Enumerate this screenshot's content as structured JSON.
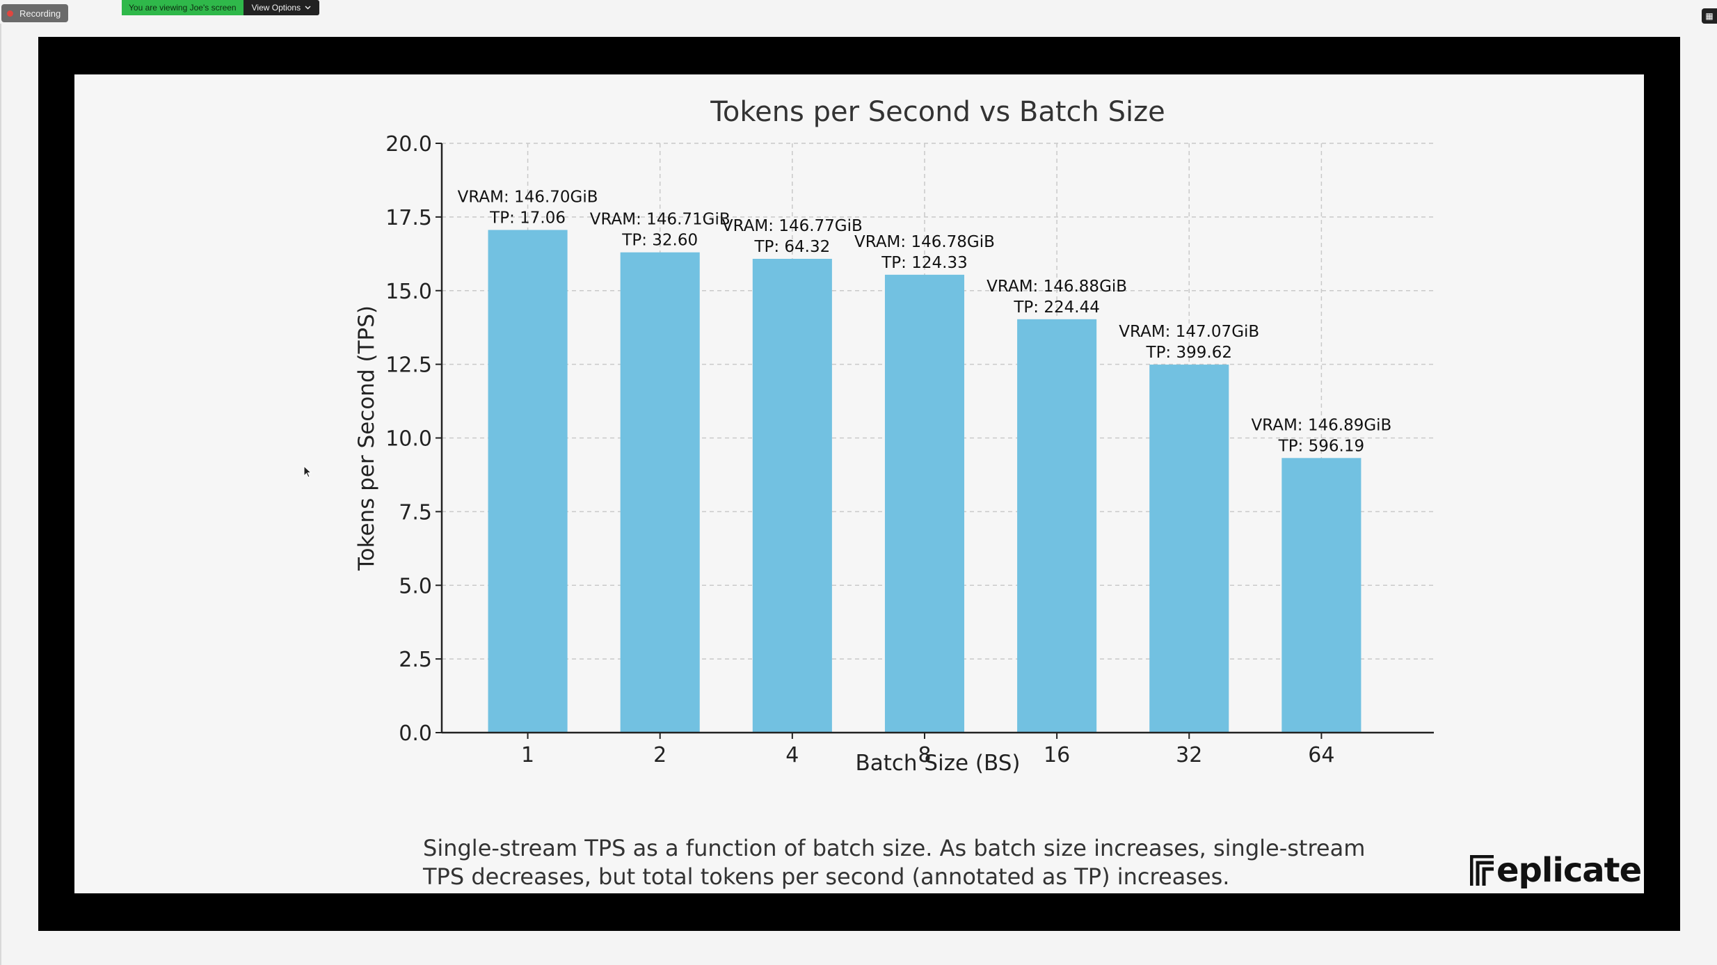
{
  "meeting": {
    "recording_label": "Recording",
    "banner_text": "You are viewing Joe's screen",
    "view_options_label": "View Options"
  },
  "slide": {
    "caption_line1": "Single-stream TPS as a function of batch size. As batch size increases, single-stream",
    "caption_line2": "TPS decreases, but total tokens per second (annotated as TP) increases.",
    "brand": "eplicate"
  },
  "colors": {
    "bar": "#72c1e1",
    "frame": "#000000",
    "banner": "#2fb84a"
  },
  "icons": {
    "recording": "red-dot-icon",
    "view_options": "chevron-down-icon",
    "brand": "replicate-logo-icon",
    "cursor": "mouse-pointer-icon"
  },
  "chart_data": {
    "type": "bar",
    "title": "Tokens per Second vs Batch Size",
    "xlabel": "Batch Size (BS)",
    "ylabel": "Tokens per Second (TPS)",
    "categories": [
      "1",
      "2",
      "4",
      "8",
      "16",
      "32",
      "64"
    ],
    "values": [
      17.06,
      16.3,
      16.08,
      15.54,
      14.03,
      12.49,
      9.32
    ],
    "annotations": [
      [
        "VRAM: 146.70GiB",
        "TP: 17.06"
      ],
      [
        "VRAM: 146.71GiB",
        "TP: 32.60"
      ],
      [
        "VRAM: 146.77GiB",
        "TP: 64.32"
      ],
      [
        "VRAM: 146.78GiB",
        "TP: 124.33"
      ],
      [
        "VRAM: 146.88GiB",
        "TP: 224.44"
      ],
      [
        "VRAM: 147.07GiB",
        "TP: 399.62"
      ],
      [
        "VRAM: 146.89GiB",
        "TP: 596.19"
      ]
    ],
    "yticks": [
      "0.0",
      "2.5",
      "5.0",
      "7.5",
      "10.0",
      "12.5",
      "15.0",
      "17.5",
      "20.0"
    ],
    "ylim": [
      0,
      20
    ],
    "grid": true,
    "legend": "none"
  }
}
